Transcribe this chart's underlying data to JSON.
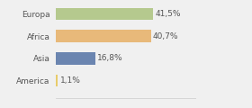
{
  "categories": [
    "Europa",
    "Africa",
    "Asia",
    "America"
  ],
  "values": [
    41.5,
    40.7,
    16.8,
    1.1
  ],
  "labels": [
    "41,5%",
    "40,7%",
    "16,8%",
    "1,1%"
  ],
  "bar_colors": [
    "#b5c98e",
    "#e8b97a",
    "#6b85b0",
    "#e8cc6a"
  ],
  "background_color": "#f0f0f0",
  "xlim": [
    0,
    60
  ],
  "bar_height": 0.55,
  "label_fontsize": 6.5,
  "category_fontsize": 6.5
}
